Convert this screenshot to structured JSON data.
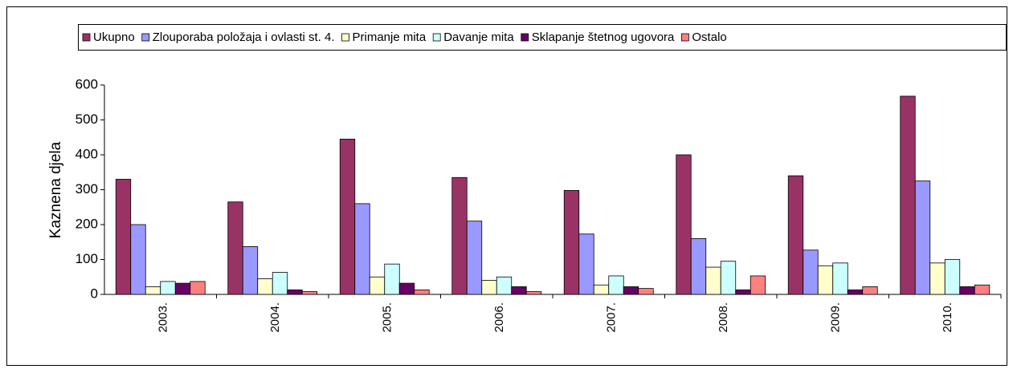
{
  "chart_data": {
    "type": "bar",
    "y_label": "Kaznena djela",
    "categories": [
      "2003.",
      "2004.",
      "2005.",
      "2006.",
      "2007.",
      "2008.",
      "2009.",
      "2010."
    ],
    "series": [
      {
        "name": "Ukupno",
        "color": "#993366",
        "values": [
          330,
          265,
          445,
          335,
          298,
          400,
          340,
          568
        ]
      },
      {
        "name": "Zlouporaba položaja i ovlasti st. 4.",
        "color": "#9999ff",
        "values": [
          200,
          137,
          260,
          210,
          173,
          160,
          127,
          325
        ]
      },
      {
        "name": "Primanje mita",
        "color": "#ffffcc",
        "values": [
          22,
          45,
          50,
          40,
          27,
          78,
          82,
          90
        ]
      },
      {
        "name": "Davanje mita",
        "color": "#ccffff",
        "values": [
          37,
          63,
          87,
          50,
          53,
          95,
          90,
          100
        ]
      },
      {
        "name": "Sklapanje štetnog ugovora",
        "color": "#660066",
        "values": [
          32,
          13,
          32,
          22,
          22,
          13,
          13,
          22
        ]
      },
      {
        "name": "Ostalo",
        "color": "#ff8080",
        "values": [
          37,
          8,
          13,
          8,
          17,
          53,
          22,
          27
        ]
      }
    ],
    "ylim": [
      0,
      600
    ],
    "yticks": [
      0,
      100,
      200,
      300,
      400,
      500,
      600
    ],
    "grid": false,
    "legend": "top"
  }
}
